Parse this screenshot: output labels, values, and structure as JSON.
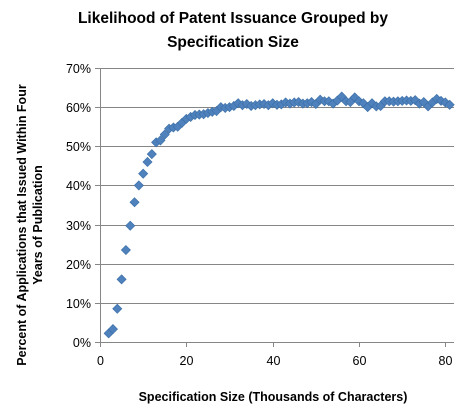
{
  "chart_data": {
    "type": "scatter",
    "title_lines": [
      "Likelihood of Patent Issuance Grouped by",
      "Specification Size"
    ],
    "xlabel": "Specification Size (Thousands of Characters)",
    "ylabel_lines": [
      "Percent of Applications that Issued Within Four",
      "Years of Publication"
    ],
    "xlim": [
      0,
      82
    ],
    "ylim": [
      0,
      70
    ],
    "x_ticks": [
      0,
      20,
      40,
      60,
      80
    ],
    "x_tick_labels": [
      "0",
      "20",
      "40",
      "60",
      "80"
    ],
    "y_ticks": [
      0,
      10,
      20,
      30,
      40,
      50,
      60,
      70
    ],
    "y_tick_labels": [
      "0%",
      "10%",
      "20%",
      "30%",
      "40%",
      "50%",
      "60%",
      "70%"
    ],
    "grid": "horizontal",
    "legend": "none",
    "marker": "diamond",
    "color": "#4F81BD",
    "series": [
      {
        "x": [
          2,
          3,
          4,
          5,
          6,
          7,
          8,
          9,
          10,
          11,
          12,
          13,
          14,
          15,
          16,
          17,
          18,
          19,
          20,
          21,
          22,
          23,
          24,
          25,
          26,
          27,
          28,
          29,
          30,
          31,
          32,
          33,
          34,
          35,
          36,
          37,
          38,
          39,
          40,
          41,
          42,
          43,
          44,
          45,
          46,
          47,
          48,
          49,
          50,
          51,
          52,
          53,
          54,
          55,
          56,
          57,
          58,
          59,
          60,
          61,
          62,
          63,
          64,
          65,
          66,
          67,
          68,
          69,
          70,
          71,
          72,
          73,
          74,
          75,
          76,
          77,
          78,
          79,
          80,
          81
        ],
        "y": [
          2.2,
          3.3,
          8.5,
          16,
          23.5,
          29.7,
          35.7,
          40,
          43,
          46,
          48,
          51,
          51.5,
          53,
          54.5,
          54.8,
          55,
          56,
          57,
          57.5,
          58,
          58.1,
          58.2,
          58.5,
          58.8,
          59,
          60,
          59.8,
          60,
          60.3,
          61,
          60.5,
          60.8,
          60.3,
          60.5,
          60.7,
          60.8,
          60.5,
          61,
          60.6,
          60.7,
          61.2,
          60.9,
          61.2,
          61.3,
          60.9,
          61,
          61.3,
          60.8,
          61.9,
          61.5,
          61.5,
          60.9,
          61.7,
          62.7,
          61.5,
          61.3,
          62.5,
          61.5,
          61,
          60,
          61,
          60.2,
          60.3,
          61.5,
          61.5,
          61.4,
          61.5,
          61.6,
          61.7,
          61.6,
          61.8,
          60.9,
          61.3,
          60.2,
          61.2,
          62.1,
          61.6,
          61.2,
          60.6
        ]
      }
    ]
  }
}
